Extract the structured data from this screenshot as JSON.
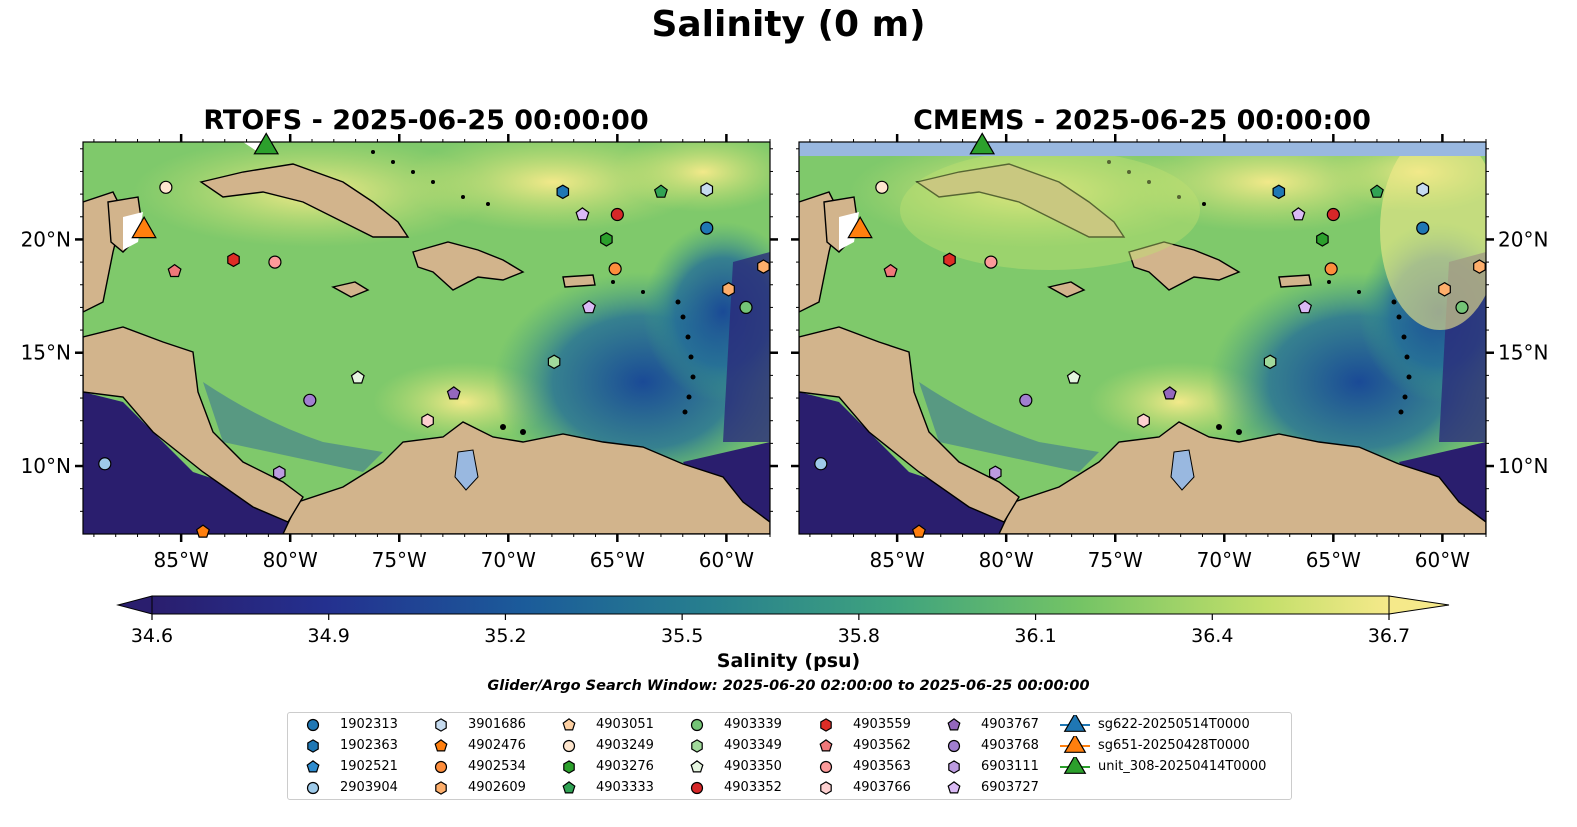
{
  "figure": {
    "title": "Salinity (0 m)",
    "panels": [
      {
        "title": "RTOFS - 2025-06-25 00:00:00"
      },
      {
        "title": "CMEMS - 2025-06-25 00:00:00"
      }
    ],
    "lon_ticks": [
      "85°W",
      "80°W",
      "75°W",
      "70°W",
      "65°W",
      "60°W"
    ],
    "lat_ticks": [
      "20°N",
      "15°N",
      "10°N"
    ],
    "colorbar": {
      "label": "Salinity (psu)",
      "ticks": [
        "34.6",
        "34.9",
        "35.2",
        "35.5",
        "35.8",
        "36.1",
        "36.4",
        "36.7"
      ],
      "min": 34.6,
      "max": 36.7,
      "extend": "both"
    },
    "search_window": "Glider/Argo Search Window: 2025-06-20 02:00:00 to 2025-06-25 00:00:00",
    "colors": {
      "land": "#d2b48c",
      "ocean_high": "#f5e98a",
      "ocean_mid": "#7fc96b",
      "ocean_low": "#2a1e6e",
      "lakes": "#99b8e0"
    }
  },
  "legend": [
    {
      "label": "1902313",
      "marker": "circle",
      "color": "#1f77b4"
    },
    {
      "label": "1902363",
      "marker": "hexagon",
      "color": "#1f77b4"
    },
    {
      "label": "1902521",
      "marker": "pentagon",
      "color": "#2e8ccf"
    },
    {
      "label": "2903904",
      "marker": "circle",
      "color": "#9ecae9"
    },
    {
      "label": "3901686",
      "marker": "hexagon",
      "color": "#c6dbef"
    },
    {
      "label": "4902476",
      "marker": "pentagon",
      "color": "#ff7f0e"
    },
    {
      "label": "4902534",
      "marker": "circle",
      "color": "#fd8d3c"
    },
    {
      "label": "4902609",
      "marker": "hexagon",
      "color": "#fdae6b"
    },
    {
      "label": "4903051",
      "marker": "pentagon",
      "color": "#fdd0a2"
    },
    {
      "label": "4903249",
      "marker": "circle",
      "color": "#fee6ce"
    },
    {
      "label": "4903276",
      "marker": "hexagon",
      "color": "#2ca02c"
    },
    {
      "label": "4903333",
      "marker": "pentagon",
      "color": "#31a354"
    },
    {
      "label": "4903339",
      "marker": "circle",
      "color": "#74c476"
    },
    {
      "label": "4903349",
      "marker": "hexagon",
      "color": "#a1d99b"
    },
    {
      "label": "4903350",
      "marker": "pentagon",
      "color": "#e5f5e0"
    },
    {
      "label": "4903352",
      "marker": "circle",
      "color": "#d62728"
    },
    {
      "label": "4903559",
      "marker": "hexagon",
      "color": "#de2d26"
    },
    {
      "label": "4903562",
      "marker": "pentagon",
      "color": "#f0787a"
    },
    {
      "label": "4903563",
      "marker": "circle",
      "color": "#fc9a9a"
    },
    {
      "label": "4903766",
      "marker": "hexagon",
      "color": "#fdd0d0"
    },
    {
      "label": "4903767",
      "marker": "pentagon",
      "color": "#9467bd"
    },
    {
      "label": "4903768",
      "marker": "circle",
      "color": "#a17fd0"
    },
    {
      "label": "6903111",
      "marker": "hexagon",
      "color": "#bc9be0"
    },
    {
      "label": "6903727",
      "marker": "pentagon",
      "color": "#dabaf5"
    },
    {
      "label": "sg622-20250514T0000",
      "marker": "triangle",
      "color": "#1f77b4"
    },
    {
      "label": "sg651-20250428T0000",
      "marker": "triangle",
      "color": "#ff7f0e"
    },
    {
      "label": "unit_308-20250414T0000",
      "marker": "triangle",
      "color": "#2ca02c"
    }
  ],
  "stations": [
    {
      "id": "1902313",
      "lon": -60.9,
      "lat": 20.5
    },
    {
      "id": "1902363",
      "lon": -67.5,
      "lat": 22.1
    },
    {
      "id": "2903904",
      "lon": -88.5,
      "lat": 10.1
    },
    {
      "id": "3901686",
      "lon": -60.9,
      "lat": 22.2
    },
    {
      "id": "4902476",
      "lon": -84.0,
      "lat": 7.1
    },
    {
      "id": "4902534",
      "lon": -65.1,
      "lat": 18.7
    },
    {
      "id": "4902609",
      "lon": -58.3,
      "lat": 18.8
    },
    {
      "id": "4903249",
      "lon": -85.7,
      "lat": 22.3
    },
    {
      "id": "4903276",
      "lon": -65.5,
      "lat": 20.0
    },
    {
      "id": "4903333",
      "lon": -63.0,
      "lat": 22.1
    },
    {
      "id": "4903339",
      "lon": -59.1,
      "lat": 17.0
    },
    {
      "id": "4903349",
      "lon": -67.9,
      "lat": 14.6
    },
    {
      "id": "4903350",
      "lon": -76.9,
      "lat": 13.9
    },
    {
      "id": "4903352",
      "lon": -65.0,
      "lat": 21.1
    },
    {
      "id": "4903559",
      "lon": -82.6,
      "lat": 19.1
    },
    {
      "id": "4903562",
      "lon": -85.3,
      "lat": 18.6
    },
    {
      "id": "4903563",
      "lon": -80.7,
      "lat": 19.0
    },
    {
      "id": "4903766",
      "lon": -73.7,
      "lat": 12.0
    },
    {
      "id": "4903767",
      "lon": -72.5,
      "lat": 13.2
    },
    {
      "id": "4903768",
      "lon": -79.1,
      "lat": 12.9
    },
    {
      "id": "6903111",
      "lon": -80.5,
      "lat": 9.7
    },
    {
      "id": "6903727",
      "lon": -66.6,
      "lat": 21.1
    },
    {
      "id": "6903727b",
      "lon": -66.3,
      "lat": 17.0
    },
    {
      "id": "4902609b",
      "lon": -59.9,
      "lat": 17.8
    }
  ],
  "gliders": [
    {
      "id": "sg651-20250428T0000",
      "lon": -86.7,
      "lat": 20.5
    },
    {
      "id": "unit_308-20250414T0000",
      "lon": -81.1,
      "lat": 24.2
    }
  ]
}
